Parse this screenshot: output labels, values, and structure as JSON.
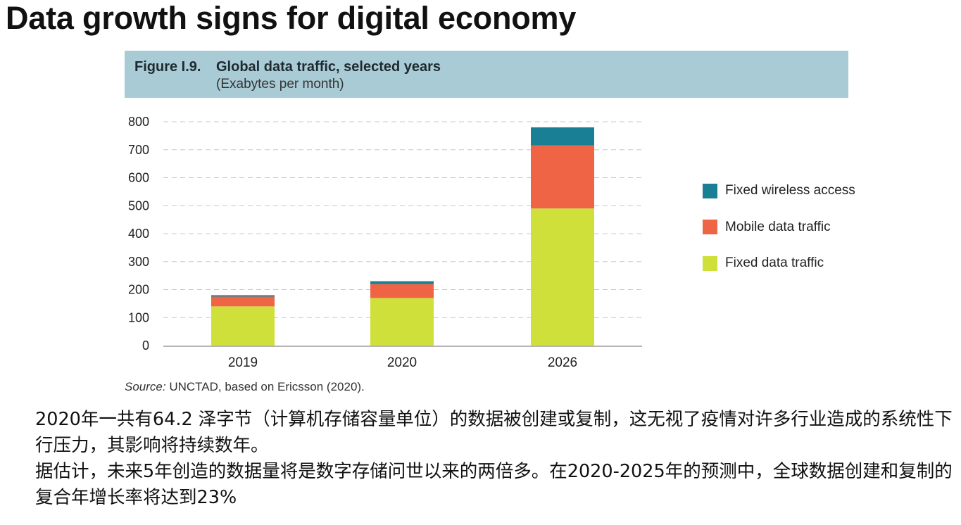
{
  "slide": {
    "title": "Data growth signs for digital economy"
  },
  "figure": {
    "number": "Figure I.9.",
    "title": "Global data traffic, selected years",
    "unit": "(Exabytes per month)",
    "source_label": "Source:",
    "source_text": " UNCTAD, based on Ericsson (2020)."
  },
  "chart_data": {
    "type": "bar",
    "stacked": true,
    "categories": [
      "2019",
      "2020",
      "2026"
    ],
    "series": [
      {
        "name": "Fixed data traffic",
        "color": "#cfe03b",
        "values": [
          140,
          170,
          490
        ]
      },
      {
        "name": "Mobile data traffic",
        "color": "#ef6445",
        "values": [
          35,
          50,
          225
        ]
      },
      {
        "name": "Fixed wireless access",
        "color": "#197f94",
        "values": [
          5,
          10,
          65
        ]
      }
    ],
    "legend_order": [
      "Fixed wireless access",
      "Mobile data traffic",
      "Fixed data traffic"
    ],
    "ylim": [
      0,
      800
    ],
    "yticks": [
      0,
      100,
      200,
      300,
      400,
      500,
      600,
      700,
      800
    ],
    "grid": true,
    "legend_position": "right"
  },
  "body": {
    "paragraph1": "2020年一共有64.2 泽字节（计算机存储容量单位）的数据被创建或复制，这无视了疫情对许多行业造成的系统性下行压力，其影响将持续数年。",
    "paragraph2": "据估计，未来5年创造的数据量将是数字存储问世以来的两倍多。在2020-2025年的预测中，全球数据创建和复制的复合年增长率将达到23%"
  }
}
